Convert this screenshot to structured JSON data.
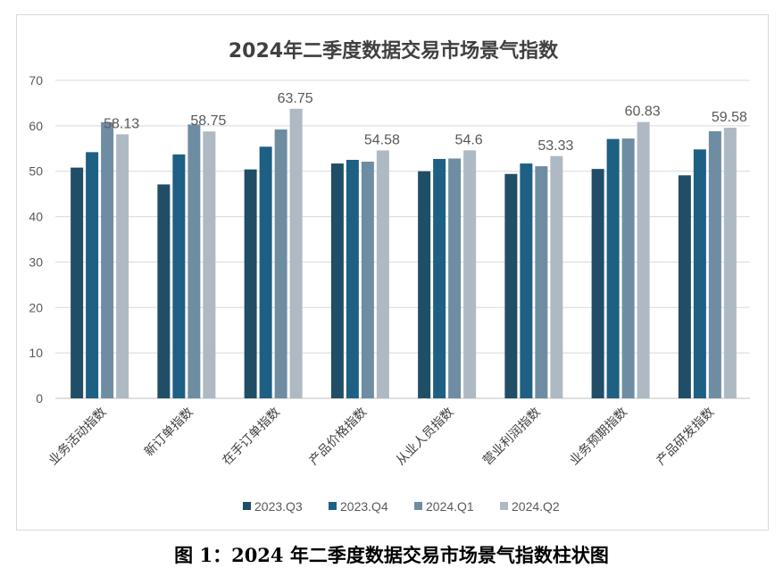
{
  "caption": "图 1：2024 年二季度数据交易市场景气指数柱状图",
  "chart_data": {
    "type": "bar",
    "title": "2024年二季度数据交易市场景气指数",
    "xlabel": "",
    "ylabel": "",
    "ylim": [
      0,
      70
    ],
    "yticks": [
      0,
      10,
      20,
      30,
      40,
      50,
      60,
      70
    ],
    "grid": true,
    "legend_position": "bottom",
    "categories": [
      "业务活动指数",
      "新订单指数",
      "在手订单指数",
      "产品价格指数",
      "从业人员指数",
      "营业利润指数",
      "业务预期指数",
      "产品研发指数"
    ],
    "series": [
      {
        "name": "2023.Q3",
        "color": "#1f4e66",
        "values": [
          50.8,
          47.1,
          50.4,
          51.7,
          50.0,
          49.4,
          50.5,
          49.1
        ]
      },
      {
        "name": "2023.Q4",
        "color": "#1e5f84",
        "values": [
          54.2,
          53.7,
          55.4,
          52.5,
          52.7,
          51.7,
          57.1,
          54.8
        ]
      },
      {
        "name": "2024.Q1",
        "color": "#6e8da3",
        "values": [
          60.8,
          60.3,
          59.2,
          52.1,
          52.8,
          51.1,
          57.2,
          58.8
        ]
      },
      {
        "name": "2024.Q2",
        "color": "#aeb9c4",
        "values": [
          58.13,
          58.75,
          63.75,
          54.58,
          54.6,
          53.33,
          60.83,
          59.58
        ]
      }
    ],
    "data_labels": [
      "58.13",
      "58.75",
      "63.75",
      "54.58",
      "54.6",
      "53.33",
      "60.83",
      "59.58"
    ]
  }
}
